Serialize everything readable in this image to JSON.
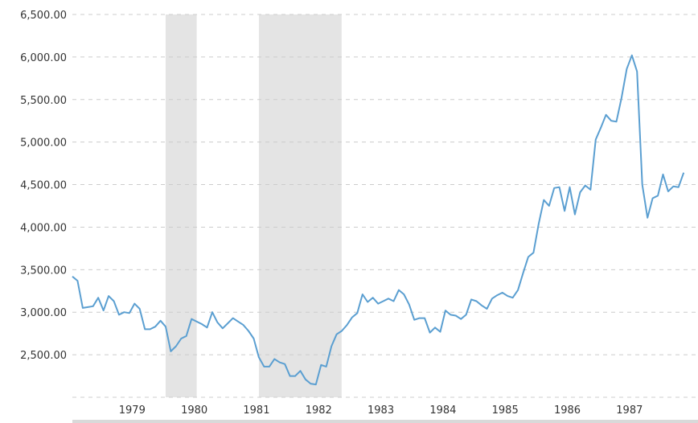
{
  "chart_data": {
    "type": "line",
    "title": "",
    "xlabel": "",
    "ylabel": "",
    "grid": true,
    "ylim": [
      2000,
      6500
    ],
    "xlim": [
      1978.0,
      1987.83
    ],
    "y_ticks": [
      6500,
      6000,
      5500,
      5000,
      4500,
      4000,
      3500,
      3000,
      2500
    ],
    "y_tick_labels": [
      "6,500.00",
      "6,000.00",
      "5,500.00",
      "5,000.00",
      "4,500.00",
      "4,000.00",
      "3,500.00",
      "3,000.00",
      "2,500.00"
    ],
    "x_ticks": [
      1979,
      1980,
      1981,
      1982,
      1983,
      1984,
      1985,
      1986,
      1987
    ],
    "x_tick_labels": [
      "1979",
      "1980",
      "1981",
      "1982",
      "1983",
      "1984",
      "1985",
      "1986",
      "1987"
    ],
    "recession_bands": [
      [
        1979.5,
        1980.0
      ],
      [
        1981.0,
        1982.33
      ]
    ],
    "colors": {
      "line": "#5b9fd1",
      "band": "#e4e4e4",
      "grid": "#cccccc",
      "axis_text": "#333333"
    },
    "series": [
      {
        "x": [
          1978.0,
          1978.083,
          1978.167,
          1978.25,
          1978.333,
          1978.417,
          1978.5,
          1978.583,
          1978.667,
          1978.75,
          1978.833,
          1978.917,
          1979.0,
          1979.083,
          1979.167,
          1979.25,
          1979.333,
          1979.417,
          1979.5,
          1979.583,
          1979.667,
          1979.75,
          1979.833,
          1979.917,
          1980.0,
          1980.083,
          1980.167,
          1980.25,
          1980.333,
          1980.417,
          1980.5,
          1980.583,
          1980.667,
          1980.75,
          1980.833,
          1980.917,
          1981.0,
          1981.083,
          1981.167,
          1981.25,
          1981.333,
          1981.417,
          1981.5,
          1981.583,
          1981.667,
          1981.75,
          1981.833,
          1981.917,
          1982.0,
          1982.083,
          1982.167,
          1982.25,
          1982.333,
          1982.417,
          1982.5,
          1982.583,
          1982.667,
          1982.75,
          1982.833,
          1982.917,
          1983.0,
          1983.083,
          1983.167,
          1983.25,
          1983.333,
          1983.417,
          1983.5,
          1983.583,
          1983.667,
          1983.75,
          1983.833,
          1983.917,
          1984.0,
          1984.083,
          1984.167,
          1984.25,
          1984.333,
          1984.417,
          1984.5,
          1984.583,
          1984.667,
          1984.75,
          1984.833,
          1984.917,
          1985.0,
          1985.083,
          1985.167,
          1985.25,
          1985.333,
          1985.417,
          1985.5,
          1985.583,
          1985.667,
          1985.75,
          1985.833,
          1985.917,
          1986.0,
          1986.083,
          1986.167,
          1986.25,
          1986.333,
          1986.417,
          1986.5,
          1986.583,
          1986.667,
          1986.75,
          1986.833,
          1986.917,
          1987.0,
          1987.083,
          1987.167,
          1987.25,
          1987.333,
          1987.417,
          1987.5,
          1987.583,
          1987.667,
          1987.75,
          1987.833
        ],
        "y": [
          3420,
          3370,
          3050,
          3060,
          3070,
          3170,
          3020,
          3190,
          3130,
          2970,
          3000,
          2990,
          3100,
          3040,
          2800,
          2800,
          2830,
          2900,
          2830,
          2540,
          2600,
          2690,
          2720,
          2920,
          2890,
          2860,
          2820,
          3000,
          2880,
          2810,
          2870,
          2930,
          2890,
          2850,
          2780,
          2690,
          2470,
          2360,
          2360,
          2450,
          2410,
          2390,
          2250,
          2250,
          2310,
          2210,
          2160,
          2150,
          2380,
          2360,
          2600,
          2740,
          2780,
          2850,
          2940,
          2990,
          3210,
          3120,
          3170,
          3100,
          3130,
          3160,
          3130,
          3260,
          3210,
          3090,
          2910,
          2930,
          2930,
          2760,
          2820,
          2770,
          3020,
          2970,
          2960,
          2920,
          2970,
          3150,
          3130,
          3080,
          3040,
          3160,
          3200,
          3230,
          3190,
          3170,
          3260,
          3460,
          3650,
          3700,
          4040,
          4320,
          4250,
          4460,
          4470,
          4190,
          4470,
          4150,
          4410,
          4490,
          4440,
          5030,
          5170,
          5320,
          5250,
          5240,
          5520,
          5860,
          6020,
          5830,
          4500,
          4110,
          4340,
          4370,
          4620,
          4420,
          4480,
          4470,
          4640
        ]
      }
    ]
  }
}
